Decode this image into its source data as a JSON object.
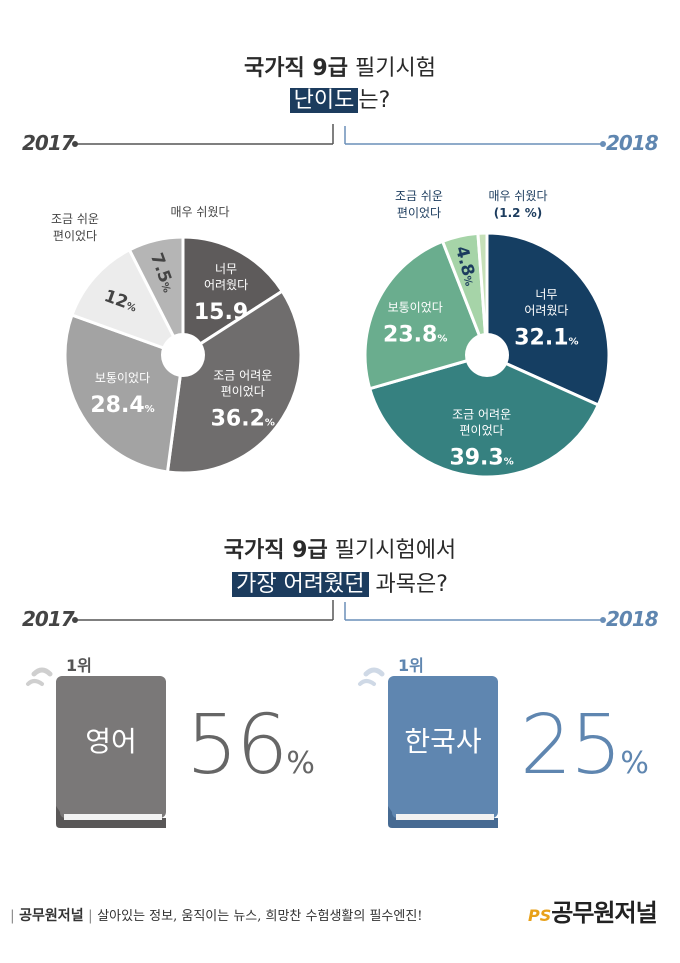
{
  "section1": {
    "title_bold": "국가직 9급",
    "title_rest": "필기시험",
    "subtitle_hl": "난이도",
    "subtitle_rest": "는?"
  },
  "section2": {
    "title_bold": "국가직 9급",
    "title_rest": "필기시험에서",
    "subtitle_hl": "가장 어려웠던",
    "subtitle_rest": "과목은?"
  },
  "years": {
    "left": "2017",
    "right": "2018"
  },
  "chart_data": [
    {
      "type": "pie",
      "title": "2017",
      "unit": "%",
      "categories": [
        "너무 어려웠다",
        "조금 어려운 편이었다",
        "보통이었다",
        "조금 쉬운 편이었다",
        "매우 쉬웠다"
      ],
      "values": [
        15.9,
        36.2,
        28.4,
        12,
        7.5
      ],
      "value_labels": [
        "15.9",
        "36.2",
        "28.4",
        "12",
        "7.5"
      ],
      "colors": [
        "#5e5b5b",
        "#6f6d6d",
        "#a3a3a3",
        "#ececec",
        "#b5b5b5"
      ]
    },
    {
      "type": "pie",
      "title": "2018",
      "unit": "%",
      "categories": [
        "너무 어려웠다",
        "조금 어려운 편이었다",
        "보통이었다",
        "조금 쉬운 편이었다",
        "매우 쉬웠다"
      ],
      "values": [
        32.1,
        39.3,
        23.8,
        4.8,
        1.2
      ],
      "value_labels": [
        "32.1",
        "39.3",
        "23.8",
        "4.8",
        "(1.2 %)"
      ],
      "colors": [
        "#153e62",
        "#368180",
        "#6aad8e",
        "#a6d4a8",
        "#c6e0b8"
      ]
    }
  ],
  "hardest": {
    "left": {
      "rank": "1위",
      "subject": "영어",
      "percent": "56",
      "unit": "%",
      "color": "#7a7878"
    },
    "right": {
      "rank": "1위",
      "subject": "한국사",
      "percent": "25",
      "unit": "%",
      "color": "#5f86b0"
    }
  },
  "footer": {
    "brand": "공무원저널",
    "slogan": "살아있는 정보, 움직이는 뉴스, 희망찬 수험생활의 필수엔진!",
    "logo_ps": "PS",
    "logo_text": "공무원저널"
  }
}
